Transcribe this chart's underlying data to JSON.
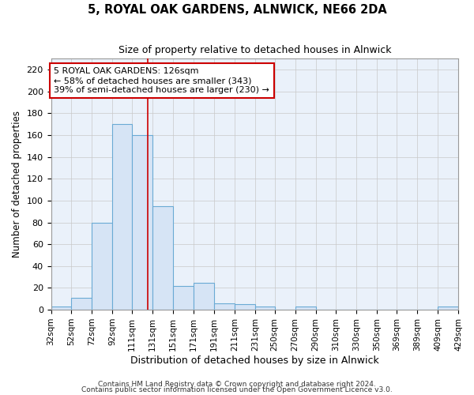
{
  "title": "5, ROYAL OAK GARDENS, ALNWICK, NE66 2DA",
  "subtitle": "Size of property relative to detached houses in Alnwick",
  "xlabel": "Distribution of detached houses by size in Alnwick",
  "ylabel": "Number of detached properties",
  "bar_edges": [
    32,
    52,
    72,
    92,
    111,
    131,
    151,
    171,
    191,
    211,
    231,
    250,
    270,
    290,
    310,
    330,
    350,
    369,
    389,
    409,
    429
  ],
  "bar_heights": [
    3,
    11,
    80,
    170,
    160,
    95,
    22,
    25,
    6,
    5,
    3,
    0,
    3,
    0,
    0,
    0,
    0,
    0,
    0,
    3
  ],
  "bar_color": "#d6e4f5",
  "bar_edge_color": "#6aaad4",
  "grid_color": "#c8c8c8",
  "background_color": "#ffffff",
  "plot_bg_color": "#eaf1fa",
  "vline_x": 126,
  "vline_color": "#cc0000",
  "ylim": [
    0,
    230
  ],
  "yticks": [
    0,
    20,
    40,
    60,
    80,
    100,
    120,
    140,
    160,
    180,
    200,
    220
  ],
  "xtick_labels": [
    "32sqm",
    "52sqm",
    "72sqm",
    "92sqm",
    "111sqm",
    "131sqm",
    "151sqm",
    "171sqm",
    "191sqm",
    "211sqm",
    "231sqm",
    "250sqm",
    "270sqm",
    "290sqm",
    "310sqm",
    "330sqm",
    "350sqm",
    "369sqm",
    "389sqm",
    "409sqm",
    "429sqm"
  ],
  "annotation_text": "5 ROYAL OAK GARDENS: 126sqm\n← 58% of detached houses are smaller (343)\n39% of semi-detached houses are larger (230) →",
  "annotation_box_color": "#ffffff",
  "annotation_box_edge_color": "#cc0000",
  "footer1": "Contains HM Land Registry data © Crown copyright and database right 2024.",
  "footer2": "Contains public sector information licensed under the Open Government Licence v3.0."
}
